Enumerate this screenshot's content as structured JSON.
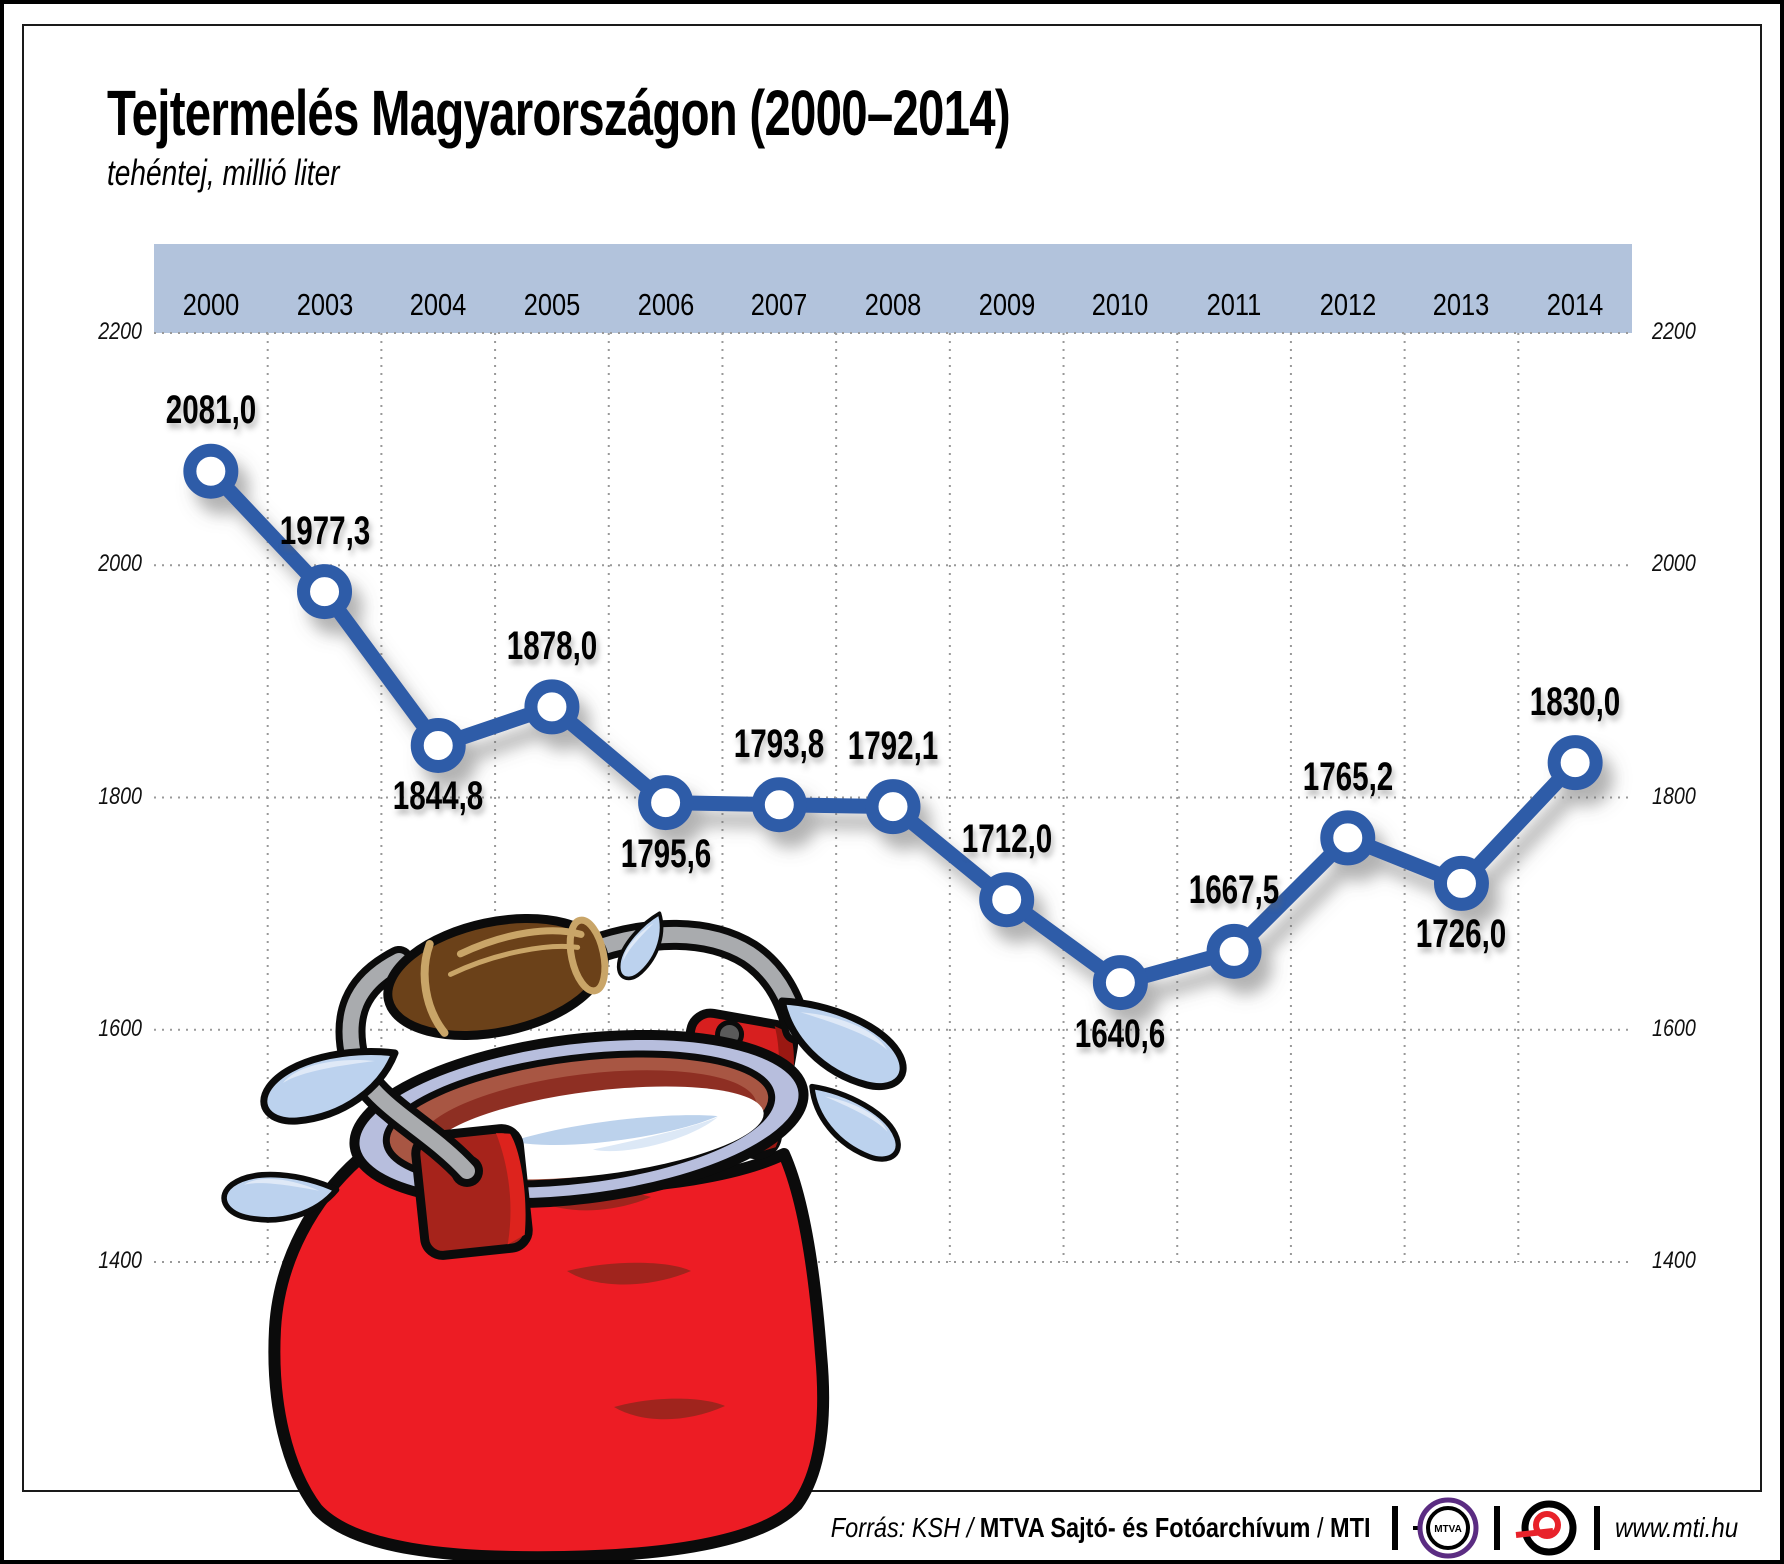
{
  "chart_data": {
    "type": "line",
    "title": "Tejtermelés Magyarországon (2000–2014)",
    "subtitle": "tehéntej, millió liter",
    "x": [
      2000,
      2003,
      2004,
      2005,
      2006,
      2007,
      2008,
      2009,
      2010,
      2011,
      2012,
      2013,
      2014
    ],
    "values": [
      2081.0,
      1977.3,
      1844.8,
      1878.0,
      1795.6,
      1793.8,
      1792.1,
      1712.0,
      1640.6,
      1667.5,
      1765.2,
      1726.0,
      1830.0
    ],
    "point_labels": [
      "2081,0",
      "1977,3",
      "1844,8",
      "1878,0",
      "1795,6",
      "1793,8",
      "1792,1",
      "1712,0",
      "1640,6",
      "1667,5",
      "1765,2",
      "1726,0",
      "1830,0"
    ],
    "label_pos": [
      "above",
      "above",
      "below",
      "above",
      "below",
      "above",
      "above",
      "above",
      "below",
      "above",
      "above",
      "below",
      "above"
    ],
    "y_ticks": [
      2200,
      2000,
      1800,
      1600,
      1400
    ],
    "ylim": [
      1400,
      2200
    ],
    "ylabel": "millió liter",
    "grid": "dotted",
    "legend": "none",
    "line_color": "#2e5ba8"
  },
  "footer": {
    "source_italic": "Forrás: KSH",
    "separator": "/",
    "source_bold": "MTVA Sajtó- és Fotóarchívum",
    "source_bold2": "MTI",
    "mtva_logo_label": "MTVA",
    "website": "www.mti.hu"
  },
  "colors": {
    "band": "#b2c3dc",
    "grid": "#999999",
    "line": "#2e5ba8",
    "can_red": "#ed1c24",
    "drop_blue": "#bcd2ee"
  }
}
